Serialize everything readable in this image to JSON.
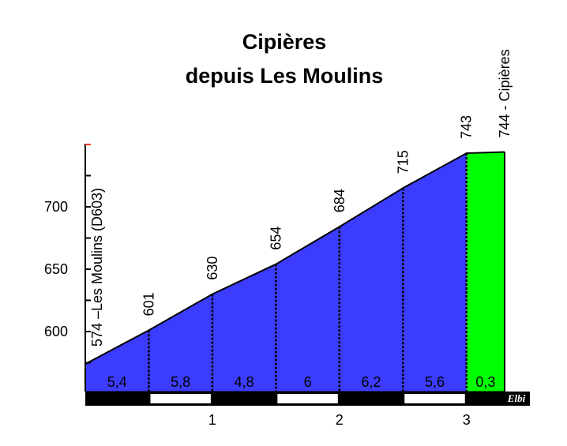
{
  "chart_data": {
    "type": "area",
    "title": "Cipières",
    "subtitle": "depuis Les Moulins",
    "distance_km": [
      0,
      0.5,
      1,
      1.5,
      2,
      2.5,
      3,
      3.3
    ],
    "altitude_m": [
      574,
      601,
      630,
      654,
      684,
      715,
      743,
      744
    ],
    "point_labels": [
      "574 –Les Moulins (D603)",
      "601",
      "630",
      "654",
      "684",
      "715",
      "743",
      "744 - Cipières"
    ],
    "segment_gradients": [
      "5,4",
      "5,8",
      "4,8",
      "6",
      "6,2",
      "5,6",
      "0,3"
    ],
    "segment_colors": [
      "#3c3cff",
      "#3c3cff",
      "#3c3cff",
      "#3c3cff",
      "#3c3cff",
      "#3c3cff",
      "#00ff00"
    ],
    "y_ticks": [
      600,
      650,
      700
    ],
    "y_tick_labels": [
      "600",
      "650",
      "700"
    ],
    "x_ticks": [
      1,
      2,
      3
    ],
    "x_tick_labels": [
      "1",
      "2",
      "3"
    ],
    "ylim": [
      546,
      773
    ],
    "xlim": [
      0,
      3.3
    ],
    "grid": false,
    "signature": "Elbi"
  }
}
